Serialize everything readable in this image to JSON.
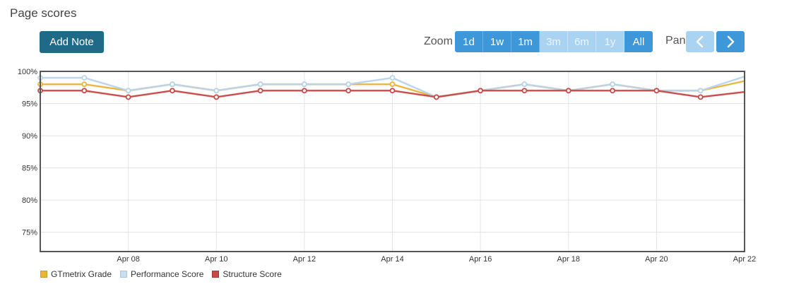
{
  "header": {
    "title": "Page scores",
    "add_note_label": "Add Note"
  },
  "zoom": {
    "label": "Zoom",
    "options": [
      {
        "label": "1d",
        "enabled": true
      },
      {
        "label": "1w",
        "enabled": true
      },
      {
        "label": "1m",
        "enabled": true
      },
      {
        "label": "3m",
        "enabled": false
      },
      {
        "label": "6m",
        "enabled": false
      },
      {
        "label": "1y",
        "enabled": false
      },
      {
        "label": "All",
        "enabled": true
      }
    ]
  },
  "pan": {
    "label": "Pan",
    "prev_icon": "chevron-left-icon",
    "next_icon": "chevron-right-icon"
  },
  "chart_data": {
    "type": "line",
    "title": "",
    "xlabel": "",
    "ylabel": "",
    "x": [
      "Apr 06",
      "Apr 07",
      "Apr 08",
      "Apr 09",
      "Apr 10",
      "Apr 11",
      "Apr 12",
      "Apr 13",
      "Apr 14",
      "Apr 15",
      "Apr 16",
      "Apr 17",
      "Apr 18",
      "Apr 19",
      "Apr 20",
      "Apr 21",
      "Apr 22"
    ],
    "x_ticks": [
      "Apr 08",
      "Apr 10",
      "Apr 12",
      "Apr 14",
      "Apr 16",
      "Apr 18",
      "Apr 20",
      "Apr 22"
    ],
    "y_ticks": [
      "100%",
      "95%",
      "90%",
      "85%",
      "80%",
      "75%"
    ],
    "y_tick_values": [
      100,
      95,
      90,
      85,
      80,
      75
    ],
    "ylim": [
      72,
      100
    ],
    "grid": true,
    "legend_position": "bottom-left",
    "series": [
      {
        "name": "GTmetrix Grade",
        "color": "#e8b43c",
        "values": [
          98,
          98,
          97,
          98,
          97,
          98,
          98,
          98,
          98,
          96,
          97,
          98,
          97,
          98,
          97,
          97,
          98.5
        ]
      },
      {
        "name": "Performance Score",
        "color": "#b8d4ea",
        "values": [
          99,
          99,
          97,
          98,
          97,
          98,
          98,
          98,
          99,
          96,
          97,
          98,
          97,
          98,
          97,
          97,
          99.2
        ]
      },
      {
        "name": "Structure Score",
        "color": "#c94848",
        "values": [
          97,
          97,
          96,
          97,
          96,
          97,
          97,
          97,
          97,
          96,
          97,
          97,
          97,
          97,
          97,
          96,
          96.8
        ]
      }
    ]
  }
}
